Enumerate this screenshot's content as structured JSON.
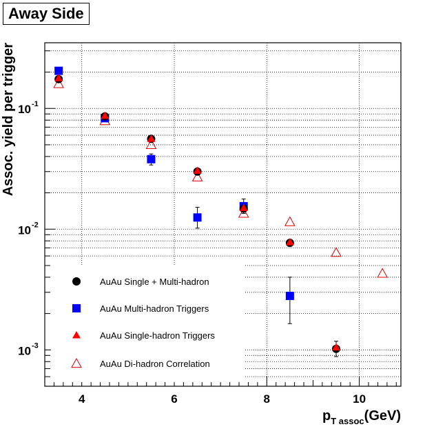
{
  "title": "Away Side",
  "chart_data": {
    "type": "scatter",
    "xlabel_main": "p",
    "xlabel_sub": "T assoc",
    "xlabel_unit": "(GeV)",
    "ylabel": "Assoc. yield per trigger",
    "xlim": [
      3.2,
      10.9
    ],
    "ylim": [
      0.0005,
      0.35
    ],
    "ylog": true,
    "grid": true,
    "legend_position": "bottom-left",
    "x_ticks": [
      "4",
      "6",
      "8",
      "10"
    ],
    "y_ticks": [
      {
        "value": 0.1,
        "label": "10",
        "exp": "-1"
      },
      {
        "value": 0.01,
        "label": "10",
        "exp": "-2"
      },
      {
        "value": 0.001,
        "label": "10",
        "exp": "-3"
      }
    ],
    "series": [
      {
        "name": "AuAu Single + Multi-hadron",
        "marker": "circle",
        "color": "#000000",
        "points": [
          {
            "x": 3.5,
            "y": 0.175
          },
          {
            "x": 4.5,
            "y": 0.086
          },
          {
            "x": 5.5,
            "y": 0.056
          },
          {
            "x": 6.5,
            "y": 0.03
          },
          {
            "x": 7.5,
            "y": 0.0148
          },
          {
            "x": 8.5,
            "y": 0.0077
          },
          {
            "x": 9.5,
            "y": 0.00102,
            "err": [
              0.00088,
              0.00118
            ]
          }
        ]
      },
      {
        "name": "AuAu Multi-hadron Triggers",
        "marker": "square",
        "color": "#0000ff",
        "points": [
          {
            "x": 3.5,
            "y": 0.205
          },
          {
            "x": 4.5,
            "y": 0.083
          },
          {
            "x": 5.5,
            "y": 0.038,
            "err": [
              0.034,
              0.042
            ]
          },
          {
            "x": 6.5,
            "y": 0.0125,
            "err": [
              0.0102,
              0.0152
            ]
          },
          {
            "x": 7.5,
            "y": 0.0155,
            "err": [
              0.0135,
              0.0178
            ]
          },
          {
            "x": 8.5,
            "y": 0.0028,
            "err": [
              0.00165,
              0.004
            ]
          }
        ]
      },
      {
        "name": "AuAu Single-hadron Triggers",
        "marker": "triangle",
        "color": "#ff0000",
        "points": [
          {
            "x": 3.5,
            "y": 0.178
          },
          {
            "x": 4.5,
            "y": 0.087
          },
          {
            "x": 5.5,
            "y": 0.056
          },
          {
            "x": 6.5,
            "y": 0.0305
          },
          {
            "x": 7.5,
            "y": 0.015
          },
          {
            "x": 8.5,
            "y": 0.0078
          },
          {
            "x": 9.5,
            "y": 0.00105
          }
        ]
      },
      {
        "name": "AuAu Di-hadron Correlation",
        "marker": "triangle-open",
        "color": "#dd0000",
        "points": [
          {
            "x": 3.5,
            "y": 0.16
          },
          {
            "x": 4.5,
            "y": 0.079
          },
          {
            "x": 5.5,
            "y": 0.05
          },
          {
            "x": 6.5,
            "y": 0.027
          },
          {
            "x": 7.5,
            "y": 0.0135
          },
          {
            "x": 8.5,
            "y": 0.0115
          },
          {
            "x": 9.5,
            "y": 0.0064
          },
          {
            "x": 10.5,
            "y": 0.0043
          }
        ]
      }
    ]
  }
}
